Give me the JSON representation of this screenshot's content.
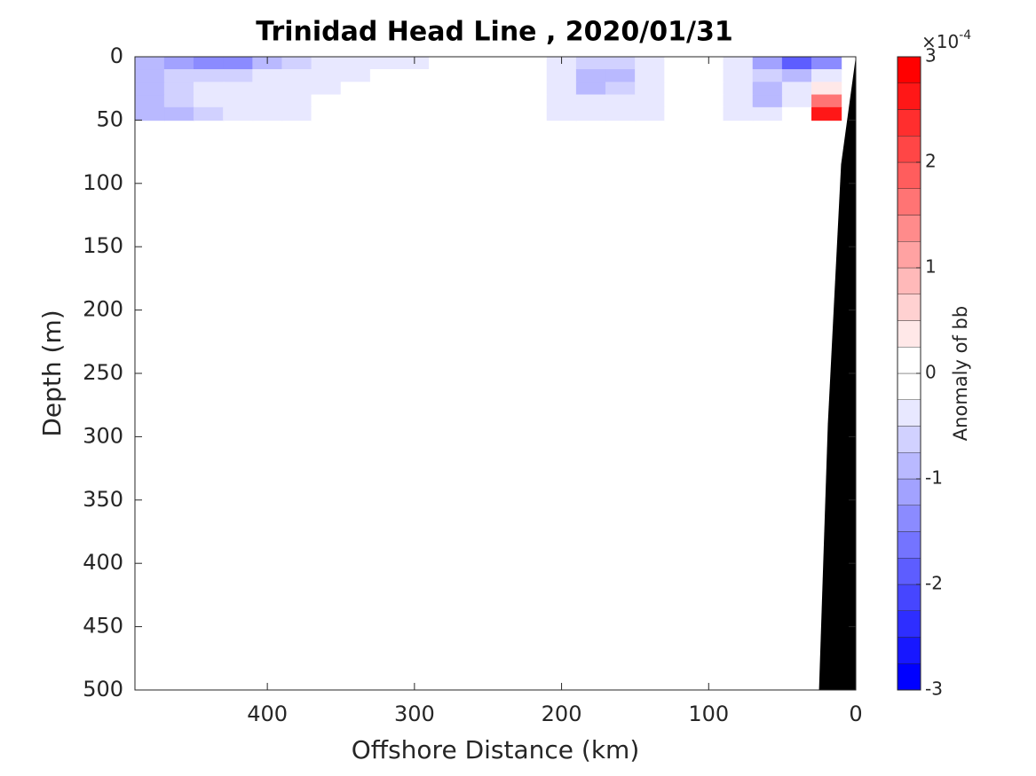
{
  "chart_data": {
    "type": "contour",
    "title": "Trinidad Head Line , 2020/01/31",
    "xlabel": "Offshore Distance (km)",
    "ylabel": "Depth (m)",
    "xlim": [
      490,
      0
    ],
    "xticks": [
      400,
      300,
      200,
      100,
      0
    ],
    "ylim": [
      0,
      500
    ],
    "yticks": [
      0,
      50,
      100,
      150,
      200,
      250,
      300,
      350,
      400,
      450,
      500
    ],
    "y_reversed": true,
    "x": [
      480,
      460,
      440,
      420,
      400,
      380,
      360,
      340,
      320,
      300,
      280,
      260,
      240,
      220,
      200,
      180,
      160,
      140,
      120,
      100,
      80,
      60,
      40,
      20
    ],
    "depth": [
      5,
      15,
      25,
      35,
      45
    ],
    "z": [
      [
        -0.8,
        -1.2,
        -1.5,
        -1.5,
        -0.8,
        -0.6,
        -0.5,
        -0.4,
        -0.3,
        -0.3,
        -0.2,
        0.1,
        0.1,
        -0.1,
        -0.5,
        -0.7,
        -0.6,
        -0.4,
        -0.2,
        0.1,
        -0.5,
        -1.2,
        -2.0,
        -1.3
      ],
      [
        -0.8,
        -0.7,
        -0.6,
        -0.6,
        -0.5,
        -0.5,
        -0.3,
        -0.3,
        -0.2,
        -0.2,
        -0.2,
        0,
        0,
        -0.2,
        -0.5,
        -1.0,
        -0.8,
        -0.4,
        -0.2,
        -0.2,
        -0.5,
        -0.7,
        -0.8,
        -0.5
      ],
      [
        -0.8,
        -0.6,
        -0.5,
        -0.5,
        -0.5,
        -0.4,
        -0.3,
        -0.2,
        -0.2,
        -0.2,
        -0.2,
        -0.1,
        -0.1,
        -0.2,
        -0.5,
        -1.0,
        -0.7,
        -0.4,
        -0.2,
        -0.2,
        -0.4,
        -0.8,
        -0.3,
        0.3
      ],
      [
        -0.9,
        -0.6,
        -0.5,
        -0.5,
        -0.5,
        -0.4,
        -0.2,
        -0.2,
        -0.2,
        -0.2,
        -0.1,
        -0.1,
        -0.1,
        -0.2,
        -0.4,
        -0.5,
        -0.5,
        -0.4,
        -0.2,
        -0.2,
        -0.4,
        -0.8,
        -0.3,
        1.5
      ],
      [
        -0.9,
        -0.8,
        -0.6,
        -0.5,
        -0.5,
        -0.4,
        -0.2,
        -0.2,
        -0.1,
        -0.1,
        -0.1,
        -0.1,
        -0.1,
        -0.2,
        -0.4,
        -0.4,
        -0.4,
        -0.3,
        -0.2,
        -0.2,
        -0.4,
        -0.4,
        -0.2,
        2.5
      ]
    ],
    "bottom": {
      "x": [
        0,
        10,
        19,
        25
      ],
      "depth": [
        0,
        85,
        290,
        500
      ],
      "color": "#000000"
    },
    "colorbar": {
      "label": "Anomaly of bb",
      "multiplier": {
        "base": "×10",
        "exponent": "-4"
      },
      "clim": [
        -3,
        3
      ],
      "ticks": [
        -3,
        -2,
        -1,
        0,
        1,
        2,
        3
      ],
      "levels": 24,
      "colors": [
        "#0000ff",
        "#ffffff",
        "#ff0000"
      ]
    }
  }
}
